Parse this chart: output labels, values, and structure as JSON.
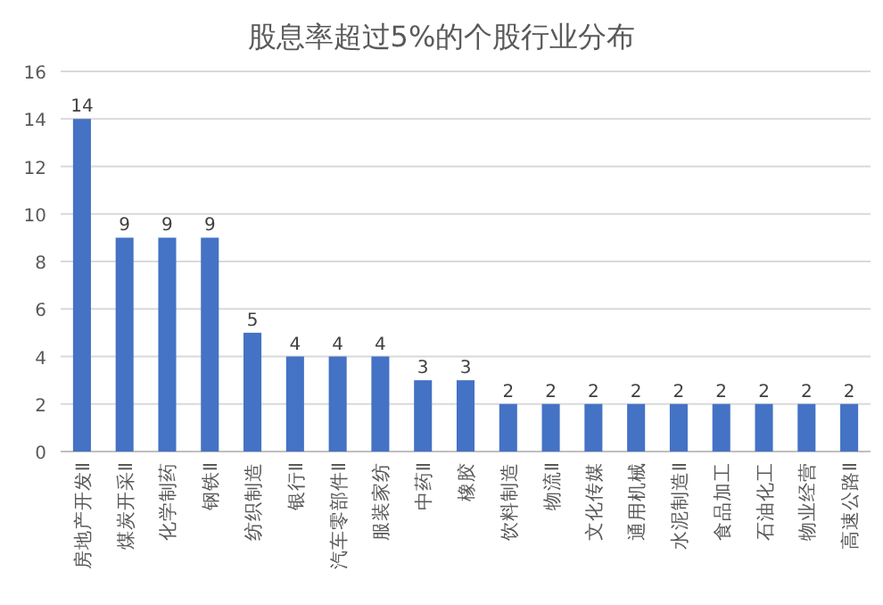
{
  "chart_data": {
    "type": "bar",
    "title": "股息率超过5%的个股行业分布",
    "categories": [
      "房地产开发Ⅱ",
      "煤炭开采Ⅱ",
      "化学制药",
      "钢铁Ⅱ",
      "纺织制造",
      "银行Ⅱ",
      "汽车零部件Ⅱ",
      "服装家纺",
      "中药Ⅱ",
      "橡胶",
      "饮料制造",
      "物流Ⅱ",
      "文化传媒",
      "通用机械",
      "水泥制造Ⅱ",
      "食品加工",
      "石油化工",
      "物业经营",
      "高速公路Ⅱ"
    ],
    "values": [
      14,
      9,
      9,
      9,
      5,
      4,
      4,
      4,
      3,
      3,
      2,
      2,
      2,
      2,
      2,
      2,
      2,
      2,
      2
    ],
    "color": "#4472c4",
    "ylim": [
      0,
      16
    ],
    "yticks": [
      0,
      2,
      4,
      6,
      8,
      10,
      12,
      14,
      16
    ],
    "grid": "y",
    "data_labels": true
  }
}
